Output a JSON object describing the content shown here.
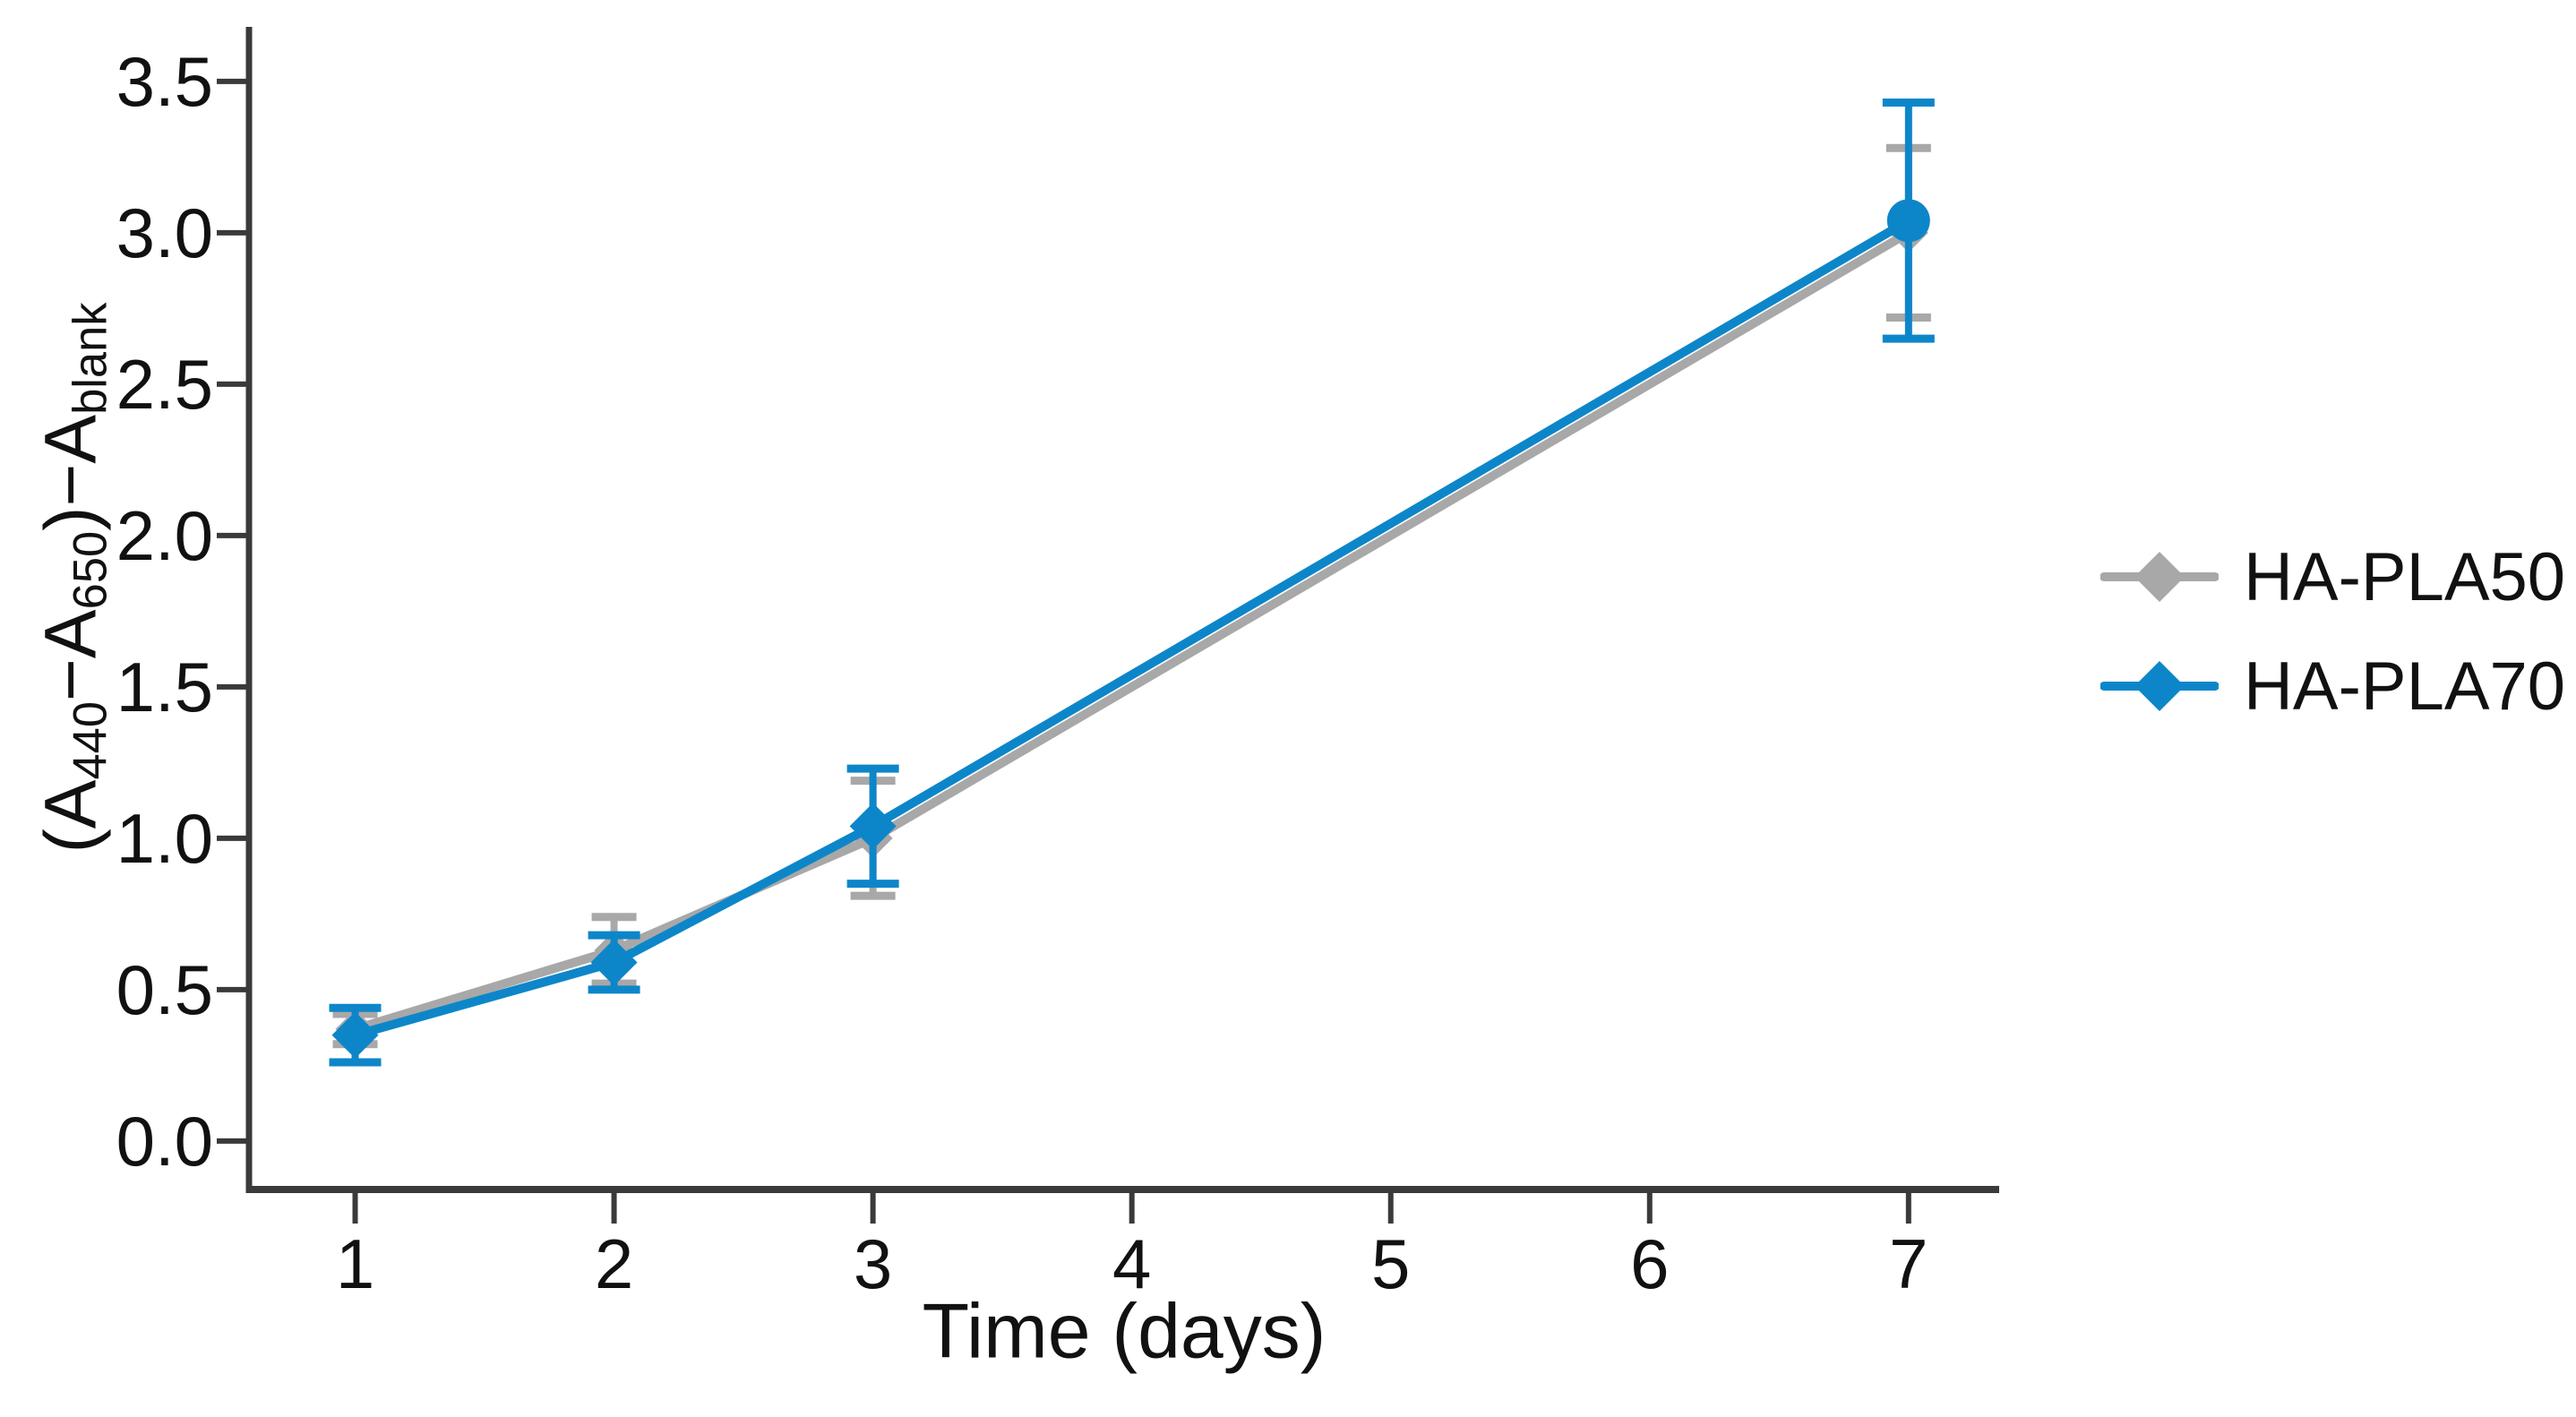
{
  "figure": {
    "background": "#ffffff",
    "text_color": "#111111",
    "axis_color": "#3a3a3a"
  },
  "axes": {
    "x": {
      "title": "Time (days)",
      "tick_labels": [
        "1",
        "2",
        "3",
        "4",
        "5",
        "6",
        "7"
      ]
    },
    "y": {
      "label_parts": [
        "(A",
        "440",
        "−A",
        "650",
        ")−A",
        "blank"
      ],
      "tick_labels": [
        "0.0",
        "0.5",
        "1.0",
        "1.5",
        "2.0",
        "2.5",
        "3.0",
        "3.5"
      ]
    }
  },
  "legend": {
    "items": [
      {
        "label": "HA-PLA50",
        "color": "#a8a8a8"
      },
      {
        "label": "HA-PLA70",
        "color": "#0d86c9"
      }
    ]
  },
  "chart_data": {
    "type": "line",
    "x": [
      1,
      2,
      3,
      7
    ],
    "series": [
      {
        "name": "HA-PLA50",
        "color": "#a8a8a8",
        "marker": "diamond",
        "values": [
          0.37,
          0.63,
          1.0,
          3.0
        ],
        "errors": [
          0.05,
          0.11,
          0.19,
          0.28
        ]
      },
      {
        "name": "HA-PLA70",
        "color": "#0d86c9",
        "marker": "diamond",
        "values": [
          0.35,
          0.59,
          1.04,
          3.04
        ],
        "errors": [
          0.09,
          0.09,
          0.19,
          0.39
        ]
      }
    ],
    "title": "",
    "xlabel": "Time (days)",
    "ylabel": "(A440−A650)−Ablank",
    "xlim": [
      0.59,
      7.35
    ],
    "ylim": [
      -0.16,
      3.68
    ],
    "x_ticks": [
      1,
      2,
      3,
      4,
      5,
      6,
      7
    ],
    "y_ticks": [
      0.0,
      0.5,
      1.0,
      1.5,
      2.0,
      2.5,
      3.0,
      3.5
    ],
    "grid": false,
    "error_bars": true,
    "legend_position": "right-outside"
  }
}
